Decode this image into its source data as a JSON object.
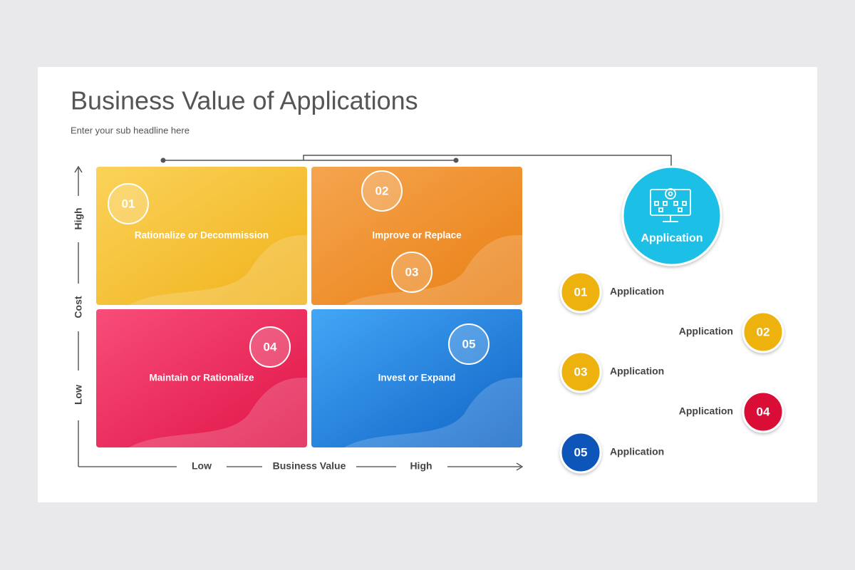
{
  "header": {
    "title": "Business Value of Applications",
    "subtitle": "Enter your sub headline here"
  },
  "matrix": {
    "quadrants": [
      {
        "label": "Rationalize or Decommission",
        "badges": [
          "01"
        ]
      },
      {
        "label": "Improve or Replace",
        "badges": [
          "02",
          "03"
        ]
      },
      {
        "label": "Maintain or Rationalize",
        "badges": [
          "04"
        ]
      },
      {
        "label": "Invest or Expand",
        "badges": [
          "05"
        ]
      }
    ],
    "y_axis": {
      "title": "Cost",
      "high": "High",
      "low": "Low"
    },
    "x_axis": {
      "title": "Business Value",
      "low": "Low",
      "high": "High"
    }
  },
  "hub": {
    "label": "Application"
  },
  "items": [
    {
      "number": "01",
      "label": "Application"
    },
    {
      "number": "02",
      "label": "Application"
    },
    {
      "number": "03",
      "label": "Application"
    },
    {
      "number": "04",
      "label": "Application"
    },
    {
      "number": "05",
      "label": "Application"
    }
  ]
}
